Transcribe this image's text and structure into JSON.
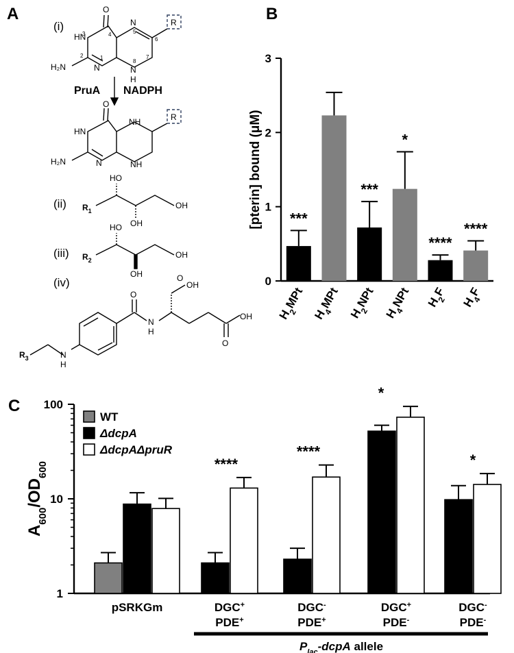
{
  "panels": {
    "a": "A",
    "b": "B",
    "c": "C"
  },
  "panel_a": {
    "labels": {
      "i": "(i)",
      "ii": "(ii)",
      "iii": "(iii)",
      "iv": "(iv)"
    },
    "enzyme": "PruA",
    "cofactor": "NADPH",
    "r_group": "R",
    "r1": "R",
    "r1_sub": "1",
    "r2": "R",
    "r2_sub": "2",
    "r3": "R",
    "r3_sub": "3",
    "atoms": {
      "O": "O",
      "OH": "OH",
      "HO": "HO",
      "NH": "NH",
      "HN": "HN",
      "N": "N",
      "H": "H",
      "H2N": "H₂N",
      "n1": "1",
      "n2": "2",
      "n3": "3",
      "n4": "4",
      "n5": "5",
      "n6": "6",
      "n7": "7",
      "n8": "8"
    }
  },
  "chart_data": [
    {
      "type": "bar",
      "panel": "B",
      "ylabel": "[pterin] bound (μM)",
      "ylim": [
        0,
        3
      ],
      "yticks": [
        "0",
        "1",
        "2",
        "3"
      ],
      "categories": [
        {
          "base": "H",
          "sub": "2",
          "rest": "MPt"
        },
        {
          "base": "H",
          "sub": "4",
          "rest": "MPt"
        },
        {
          "base": "H",
          "sub": "2",
          "rest": "NPt"
        },
        {
          "base": "H",
          "sub": "4",
          "rest": "NPt"
        },
        {
          "base": "H",
          "sub": "2",
          "rest": "F"
        },
        {
          "base": "H",
          "sub": "4",
          "rest": "F"
        }
      ],
      "values": [
        0.47,
        2.23,
        0.72,
        1.24,
        0.28,
        0.41
      ],
      "errors": [
        0.21,
        0.31,
        0.35,
        0.5,
        0.07,
        0.13
      ],
      "colors": [
        "#000000",
        "#808080",
        "#000000",
        "#808080",
        "#000000",
        "#808080"
      ],
      "significance": [
        "***",
        "",
        "***",
        "*",
        "****",
        "****"
      ]
    },
    {
      "type": "bar",
      "panel": "C",
      "scale": "log",
      "ylabel": "A600/OD600",
      "ylabel_parts": {
        "a": "A",
        "a_sub": "600",
        "slash": "/OD",
        "od_sub": "600"
      },
      "ylim": [
        1,
        100
      ],
      "yticks": [
        "1",
        "10",
        "100"
      ],
      "legend_position": "top-left",
      "series": [
        {
          "name": "WT",
          "color": "#808080",
          "values": [
            2.1,
            null,
            null,
            null,
            null
          ],
          "errors": [
            0.6,
            null,
            null,
            null,
            null
          ]
        },
        {
          "name": "ΔdcpA",
          "color": "#000000",
          "values": [
            8.8,
            2.1,
            2.3,
            52,
            9.8
          ],
          "errors": [
            2.8,
            0.6,
            0.7,
            8,
            4
          ]
        },
        {
          "name": "ΔdcpAΔpruR",
          "color": "#ffffff",
          "values": [
            7.9,
            13,
            17,
            73,
            14.2
          ],
          "errors": [
            2.2,
            3.8,
            5.8,
            22,
            4.3
          ]
        }
      ],
      "categories": [
        {
          "line1": "pSRKGm",
          "line2": ""
        },
        {
          "line1": "DGC",
          "sup1": "+",
          "line2": "PDE",
          "sup2": "+"
        },
        {
          "line1": "DGC",
          "sup1": "-",
          "line2": "PDE",
          "sup2": "+"
        },
        {
          "line1": "DGC",
          "sup1": "+",
          "line2": "PDE",
          "sup2": "-"
        },
        {
          "line1": "DGC",
          "sup1": "-",
          "line2": "PDE",
          "sup2": "-"
        }
      ],
      "significance": [
        "",
        "****",
        "****",
        "*",
        "*"
      ],
      "group_label": {
        "p": "P",
        "p_sub": "lac",
        "gene": "-dcpA",
        "suffix": " allele"
      }
    }
  ]
}
